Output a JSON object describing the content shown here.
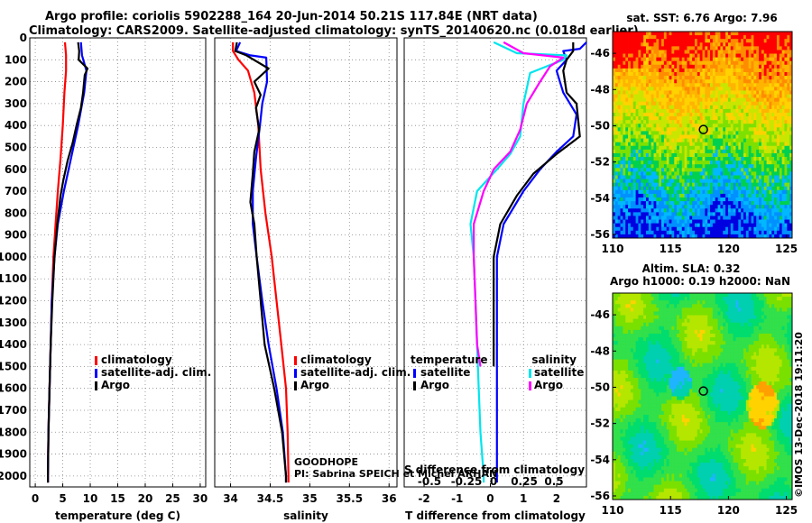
{
  "header": {
    "line1": "Argo profile: coriolis 5902288_164 20-Jun-2014 50.21S 117.84E (NRT data)",
    "line2": "Climatology: CARS2009. Satellite-adjusted climatology: synTS_20140620.nc (0.018d earlier)"
  },
  "colors": {
    "climatology": "#ff0000",
    "satellite": "#0000ff",
    "argo": "#000000",
    "sat_salinity": "#00e5ee",
    "clim_salinity": "#ff00ff"
  },
  "chart_data": [
    {
      "type": "line",
      "id": "temperature",
      "xlabel": "temperature (deg C)",
      "ylabel": "",
      "xlim": [
        -1,
        31
      ],
      "ylim": [
        2050,
        0
      ],
      "xticks": [
        0,
        5,
        10,
        15,
        20,
        25,
        30
      ],
      "yticks": [
        0,
        100,
        200,
        300,
        400,
        500,
        600,
        700,
        800,
        900,
        1000,
        1100,
        1200,
        1300,
        1400,
        1500,
        1600,
        1700,
        1800,
        1900,
        2000
      ],
      "legend": [
        "climatology",
        "satellite-adj. clim.",
        "Argo"
      ],
      "series": [
        {
          "name": "climatology",
          "color": "#ff0000",
          "points": [
            [
              5.4,
              20
            ],
            [
              5.6,
              80
            ],
            [
              5.6,
              150
            ],
            [
              5.3,
              250
            ],
            [
              5.0,
              400
            ],
            [
              4.6,
              550
            ],
            [
              4.1,
              700
            ],
            [
              3.7,
              850
            ],
            [
              3.3,
              1000
            ],
            [
              3.0,
              1200
            ],
            [
              2.8,
              1400
            ],
            [
              2.6,
              1600
            ],
            [
              2.4,
              1800
            ],
            [
              2.3,
              2000
            ],
            [
              2.3,
              2030
            ]
          ]
        },
        {
          "name": "satellite-adj. clim.",
          "color": "#0000ff",
          "points": [
            [
              8.3,
              20
            ],
            [
              8.5,
              80
            ],
            [
              9.3,
              150
            ],
            [
              8.9,
              250
            ],
            [
              7.8,
              400
            ],
            [
              6.5,
              550
            ],
            [
              5.2,
              700
            ],
            [
              4.1,
              850
            ],
            [
              3.5,
              1000
            ],
            [
              3.0,
              1200
            ],
            [
              2.8,
              1400
            ],
            [
              2.6,
              1600
            ],
            [
              2.4,
              1800
            ],
            [
              2.3,
              2000
            ],
            [
              2.3,
              2030
            ]
          ]
        },
        {
          "name": "Argo",
          "color": "#000000",
          "points": [
            [
              7.8,
              20
            ],
            [
              8.0,
              60
            ],
            [
              7.9,
              100
            ],
            [
              9.5,
              140
            ],
            [
              9.0,
              170
            ],
            [
              8.7,
              250
            ],
            [
              8.3,
              320
            ],
            [
              7.5,
              400
            ],
            [
              6.8,
              480
            ],
            [
              5.9,
              560
            ],
            [
              5.1,
              650
            ],
            [
              4.6,
              720
            ],
            [
              4.0,
              850
            ],
            [
              3.5,
              1000
            ],
            [
              3.1,
              1200
            ],
            [
              2.8,
              1400
            ],
            [
              2.6,
              1600
            ],
            [
              2.4,
              1800
            ],
            [
              2.3,
              2000
            ],
            [
              2.3,
              2030
            ]
          ]
        }
      ]
    },
    {
      "type": "line",
      "id": "salinity",
      "xlabel": "salinity",
      "ylabel": "",
      "xlim": [
        33.8,
        36.1
      ],
      "ylim": [
        2050,
        0
      ],
      "xticks": [
        34,
        34.5,
        35,
        35.5,
        36
      ],
      "legend": [
        "climatology",
        "satellite-adj. clim.",
        "Argo"
      ],
      "series": [
        {
          "name": "climatology",
          "color": "#ff0000",
          "points": [
            [
              34.03,
              20
            ],
            [
              34.03,
              60
            ],
            [
              34.1,
              100
            ],
            [
              34.22,
              150
            ],
            [
              34.3,
              250
            ],
            [
              34.35,
              400
            ],
            [
              34.38,
              600
            ],
            [
              34.44,
              800
            ],
            [
              34.52,
              1000
            ],
            [
              34.58,
              1200
            ],
            [
              34.64,
              1400
            ],
            [
              34.7,
              1600
            ],
            [
              34.72,
              1800
            ],
            [
              34.73,
              2000
            ],
            [
              34.73,
              2030
            ]
          ]
        },
        {
          "name": "satellite-adj. clim.",
          "color": "#0000ff",
          "points": [
            [
              34.12,
              20
            ],
            [
              34.07,
              60
            ],
            [
              34.25,
              80
            ],
            [
              34.45,
              90
            ],
            [
              34.46,
              200
            ],
            [
              34.4,
              300
            ],
            [
              34.37,
              400
            ],
            [
              34.32,
              550
            ],
            [
              34.28,
              700
            ],
            [
              34.28,
              850
            ],
            [
              34.33,
              1000
            ],
            [
              34.4,
              1200
            ],
            [
              34.48,
              1400
            ],
            [
              34.58,
              1600
            ],
            [
              34.66,
              1800
            ],
            [
              34.7,
              2000
            ],
            [
              34.7,
              2030
            ]
          ]
        },
        {
          "name": "Argo",
          "color": "#000000",
          "points": [
            [
              34.08,
              20
            ],
            [
              34.06,
              60
            ],
            [
              34.2,
              80
            ],
            [
              34.48,
              140
            ],
            [
              34.3,
              200
            ],
            [
              34.38,
              260
            ],
            [
              34.32,
              320
            ],
            [
              34.36,
              420
            ],
            [
              34.3,
              520
            ],
            [
              34.28,
              620
            ],
            [
              34.25,
              750
            ],
            [
              34.3,
              850
            ],
            [
              34.33,
              1000
            ],
            [
              34.38,
              1200
            ],
            [
              34.43,
              1400
            ],
            [
              34.55,
              1600
            ],
            [
              34.65,
              1800
            ],
            [
              34.7,
              2000
            ],
            [
              34.7,
              2030
            ]
          ]
        }
      ]
    },
    {
      "type": "line",
      "id": "difference",
      "xlabel": "T difference from climatology",
      "top_xlabel": "S difference from climatology",
      "xlim": [
        -2.6,
        2.9
      ],
      "ylim": [
        2050,
        0
      ],
      "xticks": [
        -2,
        -1,
        0,
        1,
        2
      ],
      "top_ticks": [
        "-0.5",
        "-0.25",
        "0",
        "0.25",
        "0.5"
      ],
      "legend_left_title": "temperature",
      "legend_right_title": "salinity",
      "legend": [
        "satellite",
        "Argo",
        "satellite",
        "Argo"
      ],
      "series": [
        {
          "name": "T satellite",
          "color": "#0000ff",
          "points": [
            [
              2.9,
              20
            ],
            [
              2.7,
              50
            ],
            [
              2.2,
              60
            ],
            [
              2.3,
              100
            ],
            [
              2.0,
              150
            ],
            [
              2.2,
              250
            ],
            [
              2.6,
              350
            ],
            [
              2.5,
              450
            ],
            [
              2.0,
              520
            ],
            [
              1.5,
              600
            ],
            [
              1.0,
              700
            ],
            [
              0.4,
              850
            ],
            [
              0.2,
              1000
            ],
            [
              0.2,
              1200
            ],
            [
              0.2,
              1400
            ],
            [
              0.2,
              1600
            ],
            [
              0.2,
              1800
            ],
            [
              0.2,
              2000
            ],
            [
              0.2,
              2030
            ]
          ]
        },
        {
          "name": "T Argo",
          "color": "#000000",
          "points": [
            [
              2.5,
              20
            ],
            [
              2.5,
              60
            ],
            [
              2.3,
              100
            ],
            [
              2.2,
              150
            ],
            [
              2.3,
              250
            ],
            [
              2.6,
              300
            ],
            [
              2.7,
              450
            ],
            [
              2.0,
              530
            ],
            [
              1.3,
              620
            ],
            [
              0.8,
              720
            ],
            [
              0.3,
              850
            ],
            [
              0.1,
              1000
            ],
            [
              0.1,
              1200
            ],
            [
              0.1,
              1400
            ],
            [
              0.1,
              1500
            ]
          ]
        },
        {
          "name": "S satellite",
          "color": "#00e5ee",
          "points": [
            [
              0.1,
              20
            ],
            [
              0.8,
              70
            ],
            [
              2.3,
              80
            ],
            [
              2.2,
              100
            ],
            [
              1.2,
              160
            ],
            [
              1.0,
              300
            ],
            [
              0.9,
              450
            ],
            [
              0.6,
              530
            ],
            [
              0.2,
              600
            ],
            [
              -0.4,
              700
            ],
            [
              -0.6,
              850
            ],
            [
              -0.5,
              1000
            ],
            [
              -0.45,
              1200
            ],
            [
              -0.4,
              1400
            ],
            [
              -0.35,
              1600
            ],
            [
              -0.3,
              1800
            ],
            [
              -0.2,
              2000
            ],
            [
              -0.2,
              2030
            ]
          ]
        },
        {
          "name": "S Argo",
          "color": "#ff00ff",
          "points": [
            [
              0.4,
              20
            ],
            [
              1.0,
              70
            ],
            [
              2.2,
              90
            ],
            [
              1.8,
              130
            ],
            [
              1.5,
              200
            ],
            [
              1.1,
              300
            ],
            [
              0.9,
              420
            ],
            [
              0.6,
              520
            ],
            [
              0.1,
              600
            ],
            [
              -0.2,
              700
            ],
            [
              -0.5,
              850
            ],
            [
              -0.5,
              1000
            ],
            [
              -0.45,
              1200
            ],
            [
              -0.4,
              1400
            ],
            [
              -0.3,
              1500
            ]
          ]
        }
      ]
    },
    {
      "type": "heatmap",
      "id": "sst-map",
      "title": "sat. SST: 6.76 Argo: 7.96",
      "xlim": [
        110,
        125.5
      ],
      "ylim": [
        -56.2,
        -44.8
      ],
      "xticks": [
        110,
        115,
        120,
        125
      ],
      "yticks": [
        -46,
        -48,
        -50,
        -52,
        -54,
        -56
      ],
      "argo_position": [
        117.84,
        -50.21
      ]
    },
    {
      "type": "heatmap",
      "id": "sla-map",
      "title_line1": "Altim. SLA: 0.32",
      "title_line2": "Argo h1000: 0.19 h2000: NaN",
      "xlim": [
        110,
        125.5
      ],
      "ylim": [
        -56.2,
        -44.8
      ],
      "xticks": [
        110,
        115,
        120,
        125
      ],
      "yticks": [
        -46,
        -48,
        -50,
        -52,
        -54,
        -56
      ],
      "argo_position": [
        117.84,
        -50.21
      ]
    }
  ],
  "annotations": {
    "project": "GOODHOPE",
    "pi": "PI: Sabrina SPEICH et Michel ARHAN",
    "credit": "©IMOS 13-Dec-2018 19:11:20"
  }
}
